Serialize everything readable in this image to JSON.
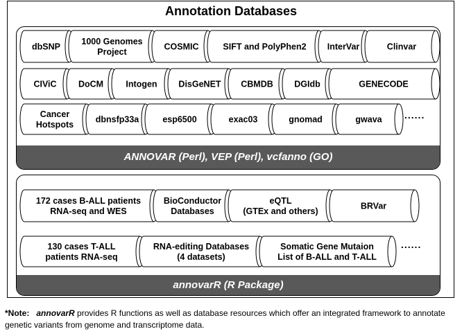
{
  "title": "Annotation Databases",
  "panel1": {
    "rows": [
      [
        "dbSNP",
        "1000 Genomes\nProject",
        "COSMIC",
        "SIFT and PolyPhen2",
        "InterVar",
        "Clinvar"
      ],
      [
        "CIViC",
        "DoCM",
        "Intogen",
        "DisGeNET",
        "CBMDB",
        "DGIdb",
        "GENECODE"
      ],
      [
        "Cancer\nHotspots",
        "dbnsfp33a",
        "esp6500",
        "exac03",
        "gnomad",
        "gwava"
      ]
    ],
    "more": "......",
    "bar_label": "ANNOVAR (Perl), VEP (Perl), vcfanno (GO)"
  },
  "panel2": {
    "rows": [
      [
        "172 cases B-ALL patients\nRNA-seq and WES",
        "BioConductor\nDatabases",
        "eQTL\n(GTEx and others)",
        "BRVar"
      ],
      [
        "130 cases T-ALL\npatients RNA-seq",
        "RNA-editing Databases\n(4 datasets)",
        "Somatic Gene Mutaion\nList of B-ALL and T-ALL"
      ]
    ],
    "more": "......",
    "bar_label": "annovarR (R Package)"
  },
  "note": {
    "label": "*Note:",
    "package": "annovarR",
    "text": " provides R functions as well as database resources which offer an integrated framework to annotate genetic variants from genome and transcriptome data."
  }
}
